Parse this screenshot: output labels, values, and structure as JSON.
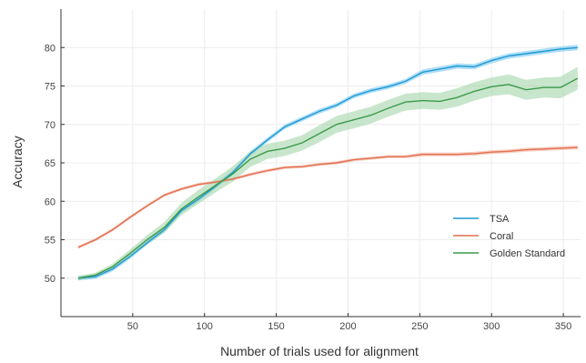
{
  "chart_data": {
    "type": "line",
    "title": "",
    "xlabel": "Number of trials used for alignment",
    "ylabel": "Accuracy",
    "xlim": [
      0,
      362
    ],
    "ylim": [
      45,
      85
    ],
    "xticks": [
      50,
      100,
      150,
      200,
      250,
      300,
      350
    ],
    "yticks": [
      50,
      55,
      60,
      65,
      70,
      75,
      80
    ],
    "grid": true,
    "legend": "right",
    "x": [
      12,
      24,
      36,
      48,
      60,
      72,
      84,
      96,
      108,
      120,
      132,
      144,
      156,
      168,
      180,
      192,
      204,
      216,
      228,
      240,
      252,
      264,
      276,
      288,
      300,
      312,
      324,
      336,
      348,
      360
    ],
    "series": [
      {
        "name": "TSA",
        "color": "#1e9ad6",
        "band_color": "#6ec3ec",
        "values": [
          50.0,
          50.2,
          51.2,
          52.8,
          54.6,
          56.3,
          58.8,
          60.3,
          62.0,
          63.8,
          66.2,
          68.0,
          69.7,
          70.7,
          71.7,
          72.5,
          73.7,
          74.4,
          74.9,
          75.6,
          76.8,
          77.2,
          77.6,
          77.5,
          78.3,
          78.9,
          79.2,
          79.5,
          79.8,
          80.0
        ],
        "band": [
          0.3,
          0.3,
          0.3,
          0.3,
          0.3,
          0.3,
          0.3,
          0.3,
          0.3,
          0.3,
          0.3,
          0.3,
          0.3,
          0.3,
          0.3,
          0.3,
          0.3,
          0.3,
          0.3,
          0.3,
          0.35,
          0.35,
          0.35,
          0.35,
          0.35,
          0.35,
          0.35,
          0.35,
          0.35,
          0.35
        ]
      },
      {
        "name": "Coral",
        "color": "#e36f4f",
        "band_color": "#f1a892",
        "values": [
          54.0,
          55.0,
          56.3,
          57.9,
          59.4,
          60.8,
          61.6,
          62.2,
          62.5,
          62.9,
          63.5,
          64.0,
          64.4,
          64.5,
          64.8,
          65.0,
          65.4,
          65.6,
          65.8,
          65.8,
          66.1,
          66.1,
          66.1,
          66.2,
          66.4,
          66.5,
          66.7,
          66.8,
          66.9,
          67.0
        ],
        "band": [
          0.2,
          0.2,
          0.2,
          0.2,
          0.2,
          0.2,
          0.2,
          0.2,
          0.2,
          0.2,
          0.2,
          0.2,
          0.2,
          0.2,
          0.2,
          0.2,
          0.2,
          0.2,
          0.2,
          0.2,
          0.25,
          0.25,
          0.25,
          0.25,
          0.25,
          0.25,
          0.25,
          0.25,
          0.25,
          0.25
        ]
      },
      {
        "name": "Golden Standard",
        "color": "#3a9a4a",
        "band_color": "#9bd1a3",
        "values": [
          50.0,
          50.4,
          51.5,
          53.2,
          55.0,
          56.6,
          59.0,
          60.6,
          62.1,
          63.6,
          65.5,
          66.5,
          66.9,
          67.6,
          68.8,
          70.0,
          70.6,
          71.2,
          72.1,
          72.9,
          73.1,
          73.0,
          73.5,
          74.3,
          74.9,
          75.2,
          74.5,
          74.8,
          74.8,
          76.0
        ],
        "band": [
          0.3,
          0.3,
          0.4,
          0.5,
          0.6,
          0.7,
          0.8,
          0.9,
          0.9,
          1.0,
          1.0,
          1.0,
          1.0,
          1.0,
          1.1,
          1.1,
          1.1,
          1.1,
          1.1,
          1.1,
          1.1,
          1.1,
          1.2,
          1.2,
          1.2,
          1.3,
          1.3,
          1.3,
          1.4,
          1.5
        ]
      }
    ]
  }
}
